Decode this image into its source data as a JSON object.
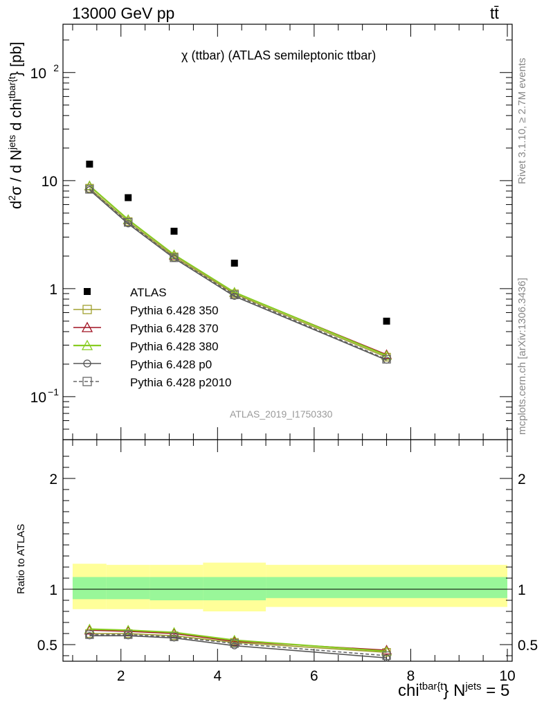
{
  "header": {
    "top_left": "13000 GeV pp",
    "top_right": "tt̄",
    "title": "χ (ttbar) (ATLAS semileptonic ttbar)",
    "analysis": "ATLAS_2019_I1750330",
    "rivet_label": "Rivet 3.1.10, ≥ 2.7M events",
    "mcplots_label": "mcplots.cern.ch [arXiv:1306.3436]"
  },
  "colors": {
    "data": "#000000",
    "p350": "#a0a030",
    "p370": "#a01020",
    "p380": "#88cc22",
    "p0": "#555555",
    "p2010": "#666666",
    "band_inner": "#99f799",
    "band_outer": "#ffff99"
  },
  "chart_data": [
    {
      "type": "scatter",
      "panel": "main",
      "ylabel": {
        "pre": "d",
        "sup1": "2",
        "mid1": "σ /  d N",
        "sup2": "jets",
        "mid2": " d chi",
        "sup3": "tbar{t",
        "post": "} [pb]"
      },
      "yscale": "log",
      "ylim": [
        0.04,
        280
      ],
      "xlim": [
        0.8,
        10.1
      ],
      "y_ticks": [
        {
          "value": 0.1,
          "base": "10",
          "exp": "−1"
        },
        {
          "value": 1,
          "base": "1",
          "exp": ""
        },
        {
          "value": 10,
          "base": "10",
          "exp": ""
        },
        {
          "value": 100,
          "base": "10",
          "exp": "2"
        }
      ],
      "bins": [
        [
          1.0,
          1.7
        ],
        [
          1.7,
          2.6
        ],
        [
          2.6,
          3.7
        ],
        [
          3.7,
          5.0
        ],
        [
          5.0,
          10.0
        ]
      ],
      "x": [
        1.35,
        2.15,
        3.1,
        4.35,
        7.5
      ],
      "series": [
        {
          "name": "ATLAS",
          "key": "data",
          "values": [
            14.2,
            6.95,
            3.4,
            1.72,
            0.5
          ],
          "marker": "filled-square"
        },
        {
          "name": "Pythia 6.428 350",
          "key": "p350",
          "values": [
            8.5,
            4.17,
            1.97,
            0.895,
            0.232
          ],
          "marker": "open-square"
        },
        {
          "name": "Pythia 6.428 370",
          "key": "p370",
          "values": [
            8.9,
            4.33,
            2.04,
            0.92,
            0.245
          ],
          "marker": "open-triangle"
        },
        {
          "name": "Pythia 6.428 380",
          "key": "p380",
          "values": [
            8.95,
            4.35,
            2.06,
            0.925,
            0.24
          ],
          "marker": "open-triangle"
        },
        {
          "name": "Pythia 6.428 p0",
          "key": "p0",
          "values": [
            8.2,
            3.98,
            1.91,
            0.85,
            0.218
          ],
          "marker": "open-circle"
        },
        {
          "name": "Pythia 6.428 p2010",
          "key": "p2010",
          "values": [
            8.3,
            4.1,
            1.93,
            0.875,
            0.222
          ],
          "marker": "open-square-dashed"
        }
      ]
    },
    {
      "type": "line",
      "panel": "ratio",
      "ylabel": "Ratio to ATLAS",
      "xlabel": {
        "pre": "chi",
        "sup1": "tbar{t",
        "mid": "} N",
        "sup2": "jets",
        "post": " = 5"
      },
      "ylim": [
        0.35,
        2.35
      ],
      "xlim": [
        0.8,
        10.1
      ],
      "y_ticks": [
        0.5,
        1,
        2
      ],
      "x_ticks": [
        2,
        4,
        6,
        8,
        10
      ],
      "band_inner": [
        [
          0.91,
          1.11
        ],
        [
          0.91,
          1.11
        ],
        [
          0.9,
          1.11
        ],
        [
          0.9,
          1.11
        ],
        [
          0.92,
          1.11
        ]
      ],
      "band_outer": [
        [
          0.82,
          1.23
        ],
        [
          0.82,
          1.22
        ],
        [
          0.82,
          1.22
        ],
        [
          0.8,
          1.24
        ],
        [
          0.84,
          1.22
        ]
      ],
      "x": [
        1.35,
        2.15,
        3.1,
        4.35,
        7.5
      ],
      "series": [
        {
          "name": "Pythia 6.428 350",
          "key": "p350",
          "values": [
            0.6,
            0.6,
            0.58,
            0.52,
            0.43
          ]
        },
        {
          "name": "Pythia 6.428 370",
          "key": "p370",
          "values": [
            0.63,
            0.62,
            0.6,
            0.53,
            0.45
          ]
        },
        {
          "name": "Pythia 6.428 380",
          "key": "p380",
          "values": [
            0.64,
            0.63,
            0.61,
            0.54,
            0.44
          ]
        },
        {
          "name": "Pythia 6.428 p0",
          "key": "p0",
          "values": [
            0.58,
            0.58,
            0.56,
            0.49,
            0.38
          ]
        },
        {
          "name": "Pythia 6.428 p2010",
          "key": "p2010",
          "values": [
            0.59,
            0.59,
            0.57,
            0.51,
            0.4
          ]
        }
      ]
    }
  ]
}
